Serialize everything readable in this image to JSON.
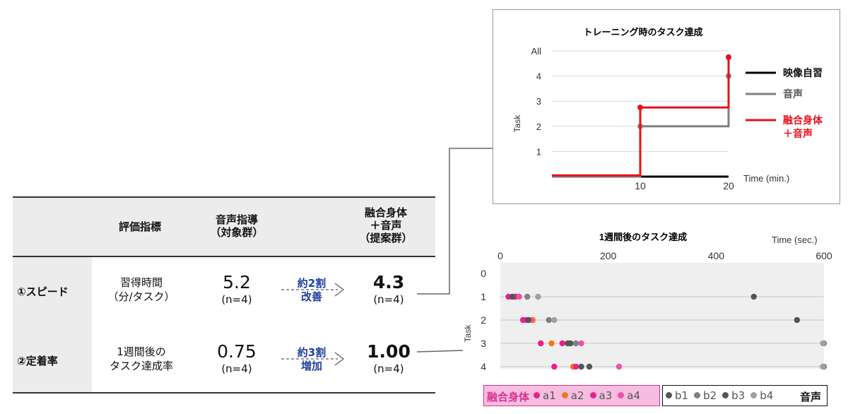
{
  "table": {
    "headers": {
      "metric": "評価指標",
      "control_l1": "音声指導",
      "control_l2": "（対象群）",
      "proposed_l1": "融合身体",
      "proposed_l2": "＋音声",
      "proposed_l3": "（提案群）"
    },
    "rows": [
      {
        "label": "①スピード",
        "metric_l1": "習得時間",
        "metric_l2": "（分/タスク）",
        "control_value": "5.2",
        "control_n": "(n=4)",
        "improve_l1": "約2割",
        "improve_l2": "改善",
        "proposed_value": "4.3",
        "proposed_n": "(n=4)"
      },
      {
        "label": "②定着率",
        "metric_l1": "1週間後の",
        "metric_l2": "タスク達成率",
        "control_value": "0.75",
        "control_n": "(n=4)",
        "improve_l1": "約3割",
        "improve_l2": "増加",
        "proposed_value": "1.00",
        "proposed_n": "(n=4)"
      }
    ]
  },
  "colors": {
    "red": "#e8101a",
    "gray": "#808080",
    "black": "#000000",
    "pink": "#e8208c",
    "orange": "#f07818",
    "darkgray": "#555555",
    "lightgray": "#a0a0a0"
  },
  "chart_data": [
    {
      "type": "line",
      "title": "トレーニング時のタスク達成",
      "xlabel": "Time (min.)",
      "ylabel": "Task",
      "xlim": [
        0,
        20
      ],
      "x_ticks": [
        "10",
        "20"
      ],
      "y_ticks": [
        "1",
        "2",
        "3",
        "4",
        "All"
      ],
      "ylim": [
        0,
        5
      ],
      "grid": true,
      "legend_position": "right",
      "series": [
        {
          "name": "映像自習",
          "color": "#000000",
          "points": [
            [
              0,
              0
            ],
            [
              20,
              0
            ]
          ]
        },
        {
          "name": "音声",
          "color": "#808080",
          "points": [
            [
              0,
              0
            ],
            [
              10,
              0
            ],
            [
              10,
              2
            ],
            [
              20,
              2
            ],
            [
              20,
              4
            ]
          ]
        },
        {
          "name": "融合身体\n＋音声",
          "legend_l1": "融合身体",
          "legend_l2": "＋音声",
          "color": "#e8101a",
          "points": [
            [
              0,
              0.05
            ],
            [
              10,
              0.05
            ],
            [
              10,
              2.75
            ],
            [
              20,
              2.75
            ],
            [
              20,
              4.75
            ]
          ]
        }
      ]
    },
    {
      "type": "scatter",
      "title": "1週間後のタスク達成",
      "xlabel": "Time (sec.)",
      "ylabel": "Task",
      "xlim": [
        0,
        600
      ],
      "x_ticks": [
        "0",
        "200",
        "400",
        "600"
      ],
      "y_ticks": [
        "0",
        "1",
        "2",
        "3",
        "4"
      ],
      "grid": true,
      "legend_position": "bottom",
      "group_labels": {
        "fused": "融合身体",
        "audio": "音声"
      },
      "series": [
        {
          "name": "a1",
          "group": "fused",
          "color": "#e8208c",
          "points": [
            [
              15,
              1
            ],
            [
              42,
              2
            ],
            [
              75,
              3
            ],
            [
              100,
              4
            ]
          ]
        },
        {
          "name": "a2",
          "group": "fused",
          "color": "#f07818",
          "points": [
            [
              25,
              1
            ],
            [
              60,
              2
            ],
            [
              95,
              3
            ],
            [
              135,
              4
            ]
          ]
        },
        {
          "name": "a3",
          "group": "fused",
          "color": "#e8208c",
          "points": [
            [
              28,
              1
            ],
            [
              48,
              2
            ],
            [
              115,
              3
            ],
            [
              140,
              4
            ]
          ]
        },
        {
          "name": "a4",
          "group": "fused",
          "color": "#f050a8",
          "points": [
            [
              35,
              1
            ],
            [
              55,
              2
            ],
            [
              150,
              3
            ],
            [
              220,
              4
            ]
          ]
        },
        {
          "name": "b1",
          "group": "audio",
          "color": "#555555",
          "points": [
            [
              22,
              1
            ],
            [
              52,
              2
            ],
            [
              130,
              3
            ],
            [
              165,
              4
            ]
          ]
        },
        {
          "name": "b2",
          "group": "audio",
          "color": "#808080",
          "points": [
            [
              50,
              1
            ],
            [
              90,
              2
            ],
            [
              140,
              3
            ],
            [
              600,
              3
            ],
            [
              600,
              4
            ]
          ]
        },
        {
          "name": "b3",
          "group": "audio",
          "color": "#555555",
          "points": [
            [
              470,
              1
            ],
            [
              550,
              2
            ],
            [
              125,
              3
            ],
            [
              150,
              4
            ]
          ]
        },
        {
          "name": "b4",
          "group": "audio",
          "color": "#a0a0a0",
          "points": [
            [
              70,
              1
            ],
            [
              100,
              2
            ],
            [
              598,
              3
            ],
            [
              598,
              4
            ]
          ]
        }
      ]
    }
  ]
}
